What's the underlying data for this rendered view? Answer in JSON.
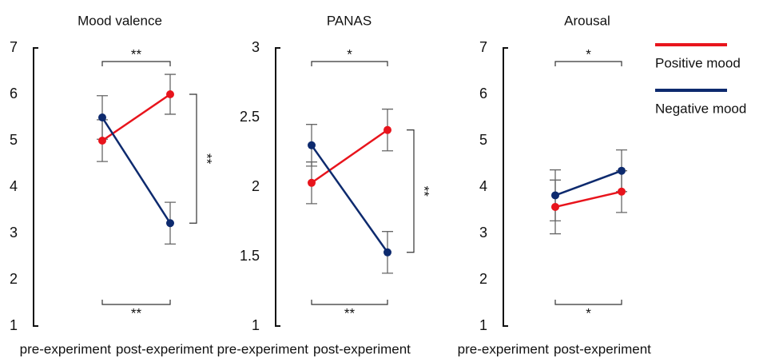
{
  "chart_data": [
    {
      "type": "line",
      "title": "Mood valence",
      "categories": [
        "pre-experiment",
        "post-experiment"
      ],
      "ylim": [
        1,
        7
      ],
      "yticks": [
        1,
        2,
        3,
        4,
        5,
        6,
        7
      ],
      "series": [
        {
          "name": "Positive mood",
          "color": "#e8141c",
          "values": [
            5.0,
            6.0
          ],
          "errors": [
            0.45,
            0.43
          ]
        },
        {
          "name": "Negative mood",
          "color": "#0d2a6e",
          "values": [
            5.5,
            3.22
          ],
          "errors": [
            0.47,
            0.45
          ]
        }
      ],
      "significance": [
        "**",
        "**",
        "**"
      ]
    },
    {
      "type": "line",
      "title": "PANAS",
      "categories": [
        "pre-experiment",
        "post-experiment"
      ],
      "ylim": [
        1,
        3
      ],
      "yticks": [
        1,
        1.5,
        2,
        2.5,
        3
      ],
      "series": [
        {
          "name": "Positive mood",
          "color": "#e8141c",
          "values": [
            2.03,
            2.41
          ],
          "errors": [
            0.15,
            0.15
          ]
        },
        {
          "name": "Negative mood",
          "color": "#0d2a6e",
          "values": [
            2.3,
            1.53
          ],
          "errors": [
            0.15,
            0.15
          ]
        }
      ],
      "significance": [
        "*",
        "**",
        "**"
      ]
    },
    {
      "type": "line",
      "title": "Arousal",
      "categories": [
        "pre-experiment",
        "post-experiment"
      ],
      "ylim": [
        1,
        7
      ],
      "yticks": [
        1,
        2,
        3,
        4,
        5,
        6,
        7
      ],
      "series": [
        {
          "name": "Positive mood",
          "color": "#e8141c",
          "values": [
            3.57,
            3.9
          ],
          "errors": [
            0.58,
            0.45
          ]
        },
        {
          "name": "Negative mood",
          "color": "#0d2a6e",
          "values": [
            3.82,
            4.35
          ],
          "errors": [
            0.55,
            0.45
          ]
        }
      ],
      "significance": [
        "*",
        "*"
      ]
    }
  ]
}
